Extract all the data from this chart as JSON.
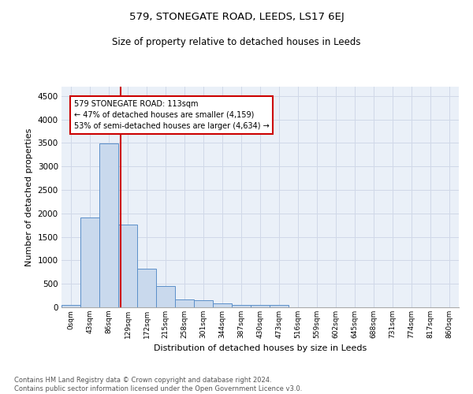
{
  "title_main": "579, STONEGATE ROAD, LEEDS, LS17 6EJ",
  "title_sub": "Size of property relative to detached houses in Leeds",
  "xlabel": "Distribution of detached houses by size in Leeds",
  "ylabel": "Number of detached properties",
  "bar_labels": [
    "0sqm",
    "43sqm",
    "86sqm",
    "129sqm",
    "172sqm",
    "215sqm",
    "258sqm",
    "301sqm",
    "344sqm",
    "387sqm",
    "430sqm",
    "473sqm",
    "516sqm",
    "559sqm",
    "602sqm",
    "645sqm",
    "688sqm",
    "731sqm",
    "774sqm",
    "817sqm",
    "860sqm"
  ],
  "bar_values": [
    50,
    1920,
    3490,
    1770,
    830,
    450,
    170,
    155,
    90,
    55,
    45,
    45,
    0,
    0,
    0,
    0,
    0,
    0,
    0,
    0,
    0
  ],
  "bar_color": "#c9d9ed",
  "bar_edge_color": "#5b8fc9",
  "grid_color": "#d0d8e8",
  "background_color": "#eaf0f8",
  "vline_color": "#cc0000",
  "annotation_text": "579 STONEGATE ROAD: 113sqm\n← 47% of detached houses are smaller (4,159)\n53% of semi-detached houses are larger (4,634) →",
  "annotation_box_color": "#ffffff",
  "annotation_box_edge": "#cc0000",
  "ylim": [
    0,
    4700
  ],
  "yticks": [
    0,
    500,
    1000,
    1500,
    2000,
    2500,
    3000,
    3500,
    4000,
    4500
  ],
  "footer_line1": "Contains HM Land Registry data © Crown copyright and database right 2024.",
  "footer_line2": "Contains public sector information licensed under the Open Government Licence v3.0."
}
